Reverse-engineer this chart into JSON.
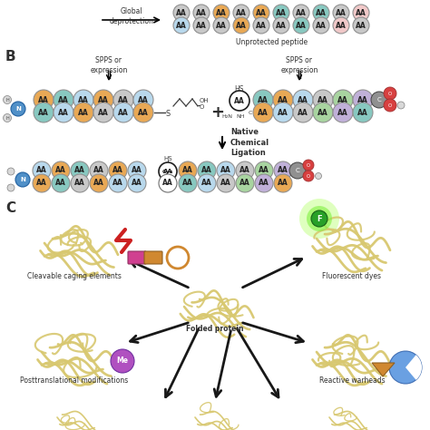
{
  "bg_color": "#ffffff",
  "colors": {
    "orange": "#E8A855",
    "light_blue": "#B8D8EC",
    "light_green": "#A8D4A0",
    "light_purple": "#C0B0D8",
    "light_pink": "#F0C8C8",
    "light_teal": "#88C8C0",
    "gray": "#C8C8C8",
    "white": "#FFFFFF",
    "blue_n": "#5090C8",
    "red_o": "#D84040",
    "green_fluor": "#30C030",
    "purple_me": "#B050C0",
    "protein_yellow": "#D8C870",
    "dark_orange": "#D08830",
    "pink_cage": "#E060A0",
    "carbon_gray": "#909090"
  },
  "section_B": "B",
  "section_C": "C",
  "global_deprotection": "Global\ndeprotection",
  "unprotected_peptide": "Unprotected peptide",
  "spps": "SPPS or\nexpression",
  "ncl": "Native\nChemical\nLigation",
  "folded_protein": "Folded protein",
  "cleavable": "Cleavable caging elements",
  "fluorescent": "Fluorescent dyes",
  "posttranslational": "Posttranslational modifications",
  "reactive": "Reactive warheads"
}
